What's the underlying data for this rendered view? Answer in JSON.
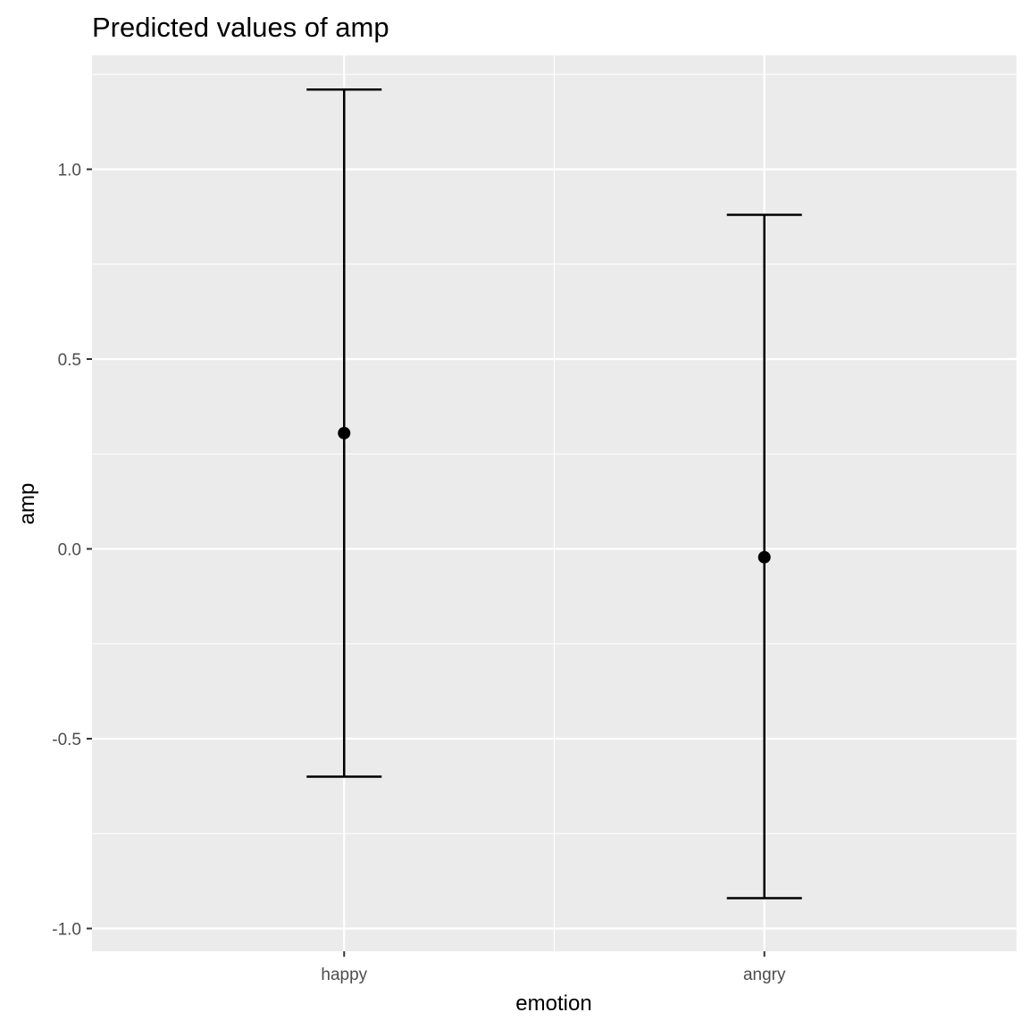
{
  "chart_data": {
    "type": "scatter",
    "title": "Predicted values of amp",
    "xlabel": "emotion",
    "ylabel": "amp",
    "categories": [
      "happy",
      "angry"
    ],
    "series": [
      {
        "values": [
          0.305,
          -0.022
        ],
        "lower": [
          -0.6,
          -0.92
        ],
        "upper": [
          1.21,
          0.88
        ]
      }
    ],
    "ylim": [
      -1.06,
      1.3
    ],
    "yticks": [
      -1.0,
      -0.5,
      0.0,
      0.5,
      1.0
    ],
    "ytick_labels": [
      "-1.0",
      "-0.5",
      "0.0",
      "0.5",
      "1.0"
    ],
    "grid": true,
    "colors": {
      "panel": "#ebebeb",
      "grid": "#ffffff",
      "mark": "#000000",
      "tick_text": "#4d4d4d"
    }
  }
}
